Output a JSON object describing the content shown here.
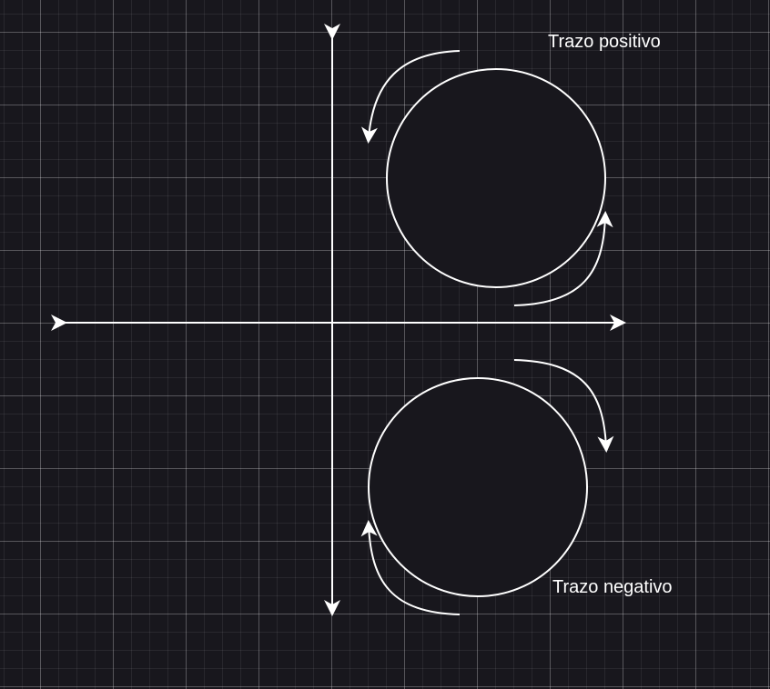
{
  "labels": {
    "positive": "Trazo positivo",
    "negative": "Trazo negativo"
  },
  "colors": {
    "background": "#18171d",
    "stroke": "#ffffff",
    "circle_fill": "#18171d"
  }
}
